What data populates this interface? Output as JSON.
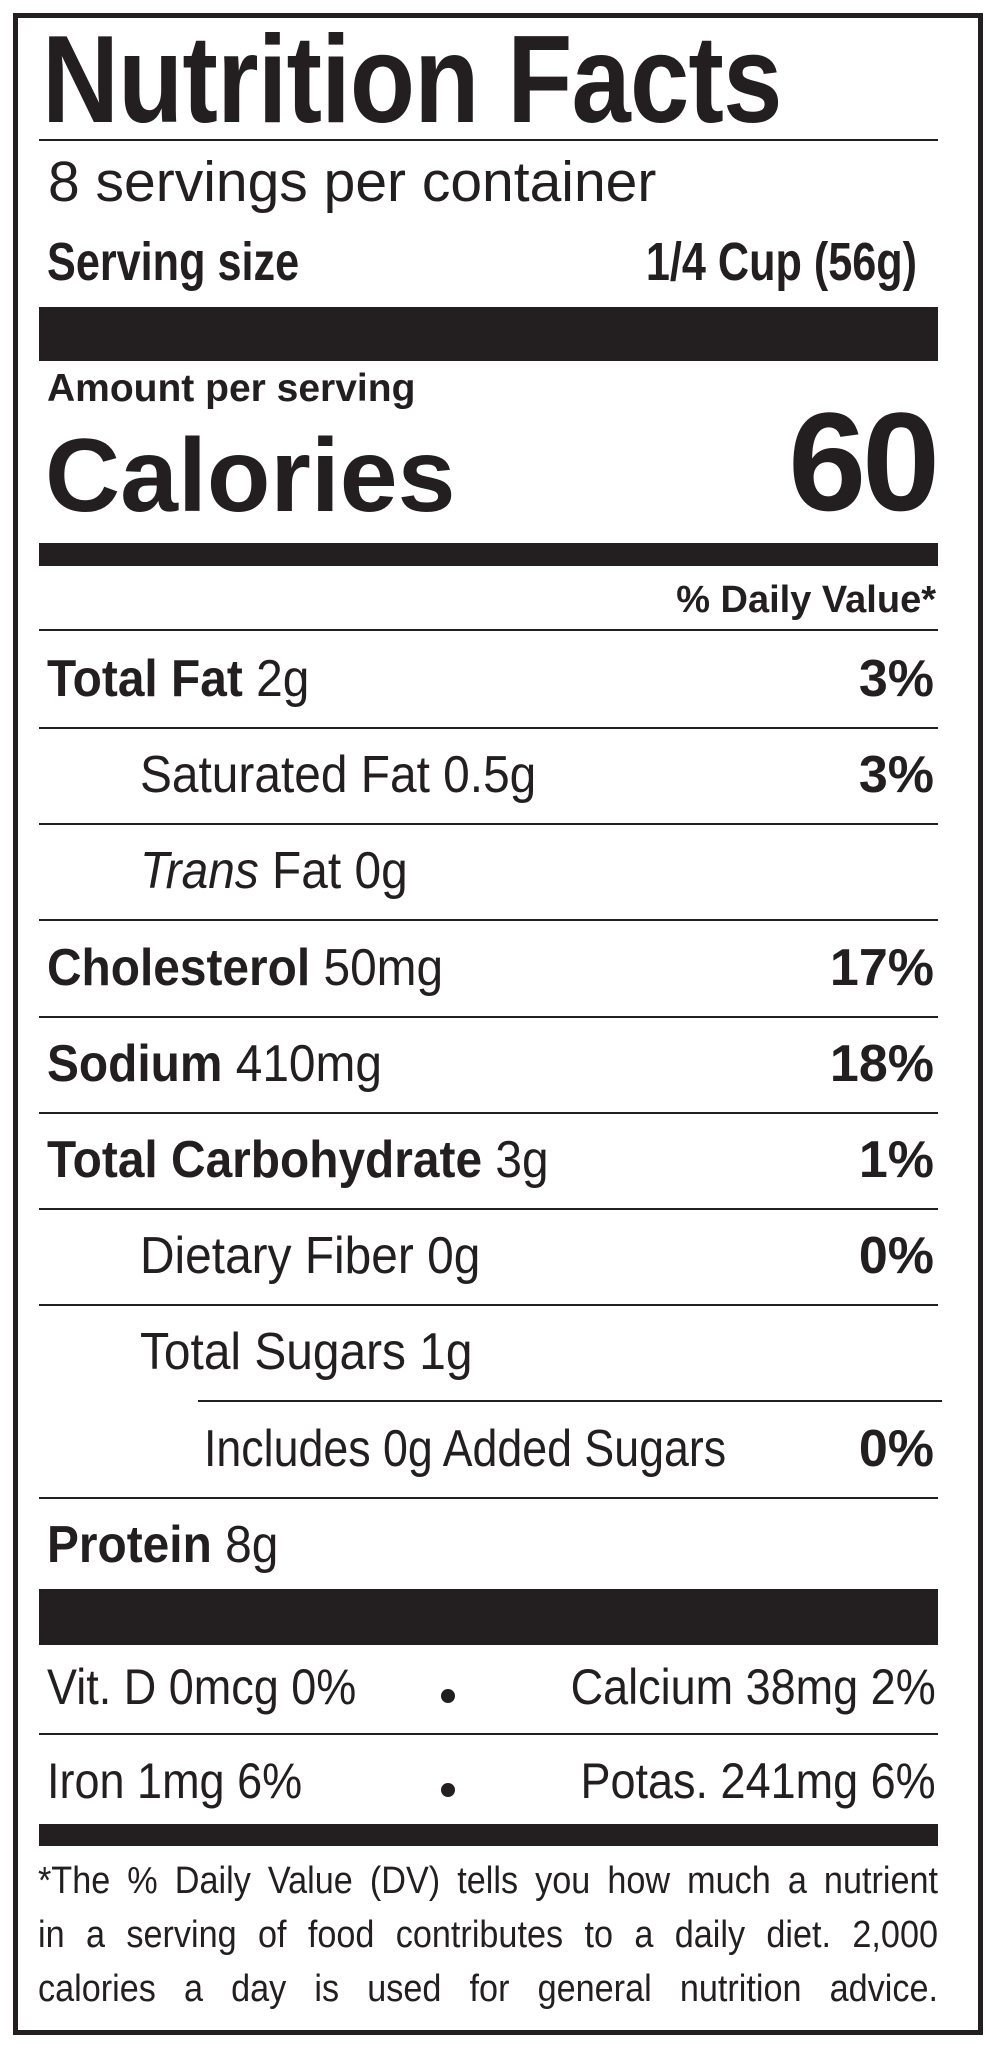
{
  "header": {
    "title": "Nutrition Facts",
    "servings": "8 servings per container",
    "serving_size_label": "Serving size",
    "serving_size_value": "1/4 Cup (56g)"
  },
  "calories": {
    "amount_label": "Amount per serving",
    "label": "Calories",
    "value": "60"
  },
  "dv_header": "% Daily Value*",
  "nutrients": [
    {
      "name": "Total Fat",
      "amount": "2g",
      "dv": "3%"
    },
    {
      "name": "Saturated Fat",
      "amount": "0.5g",
      "dv": "3%"
    },
    {
      "prefix": "Trans",
      "name": "Fat",
      "amount": "0g"
    },
    {
      "name": "Cholesterol",
      "amount": "50mg",
      "dv": "17%"
    },
    {
      "name": "Sodium",
      "amount": "410mg",
      "dv": "18%"
    },
    {
      "name": "Total Carbohydrate",
      "amount": "3g",
      "dv": "1%"
    },
    {
      "name": "Dietary Fiber",
      "amount": "0g",
      "dv": "0%"
    },
    {
      "name": "Total Sugars",
      "amount": "1g"
    },
    {
      "name": "Includes 0g Added Sugars",
      "dv": "0%"
    },
    {
      "name": "Protein",
      "amount": "8g"
    }
  ],
  "minerals": [
    [
      "Vit. D 0mcg 0%",
      "Calcium 38mg 2%"
    ],
    [
      "Iron 1mg 6%",
      "Potas. 241mg 6%"
    ]
  ],
  "footnote": [
    "*The % Daily Value (DV) tells you how much a nutrient",
    "in a serving of food contributes to a daily diet. 2,000",
    "calories a day is used for general nutrition advice."
  ]
}
